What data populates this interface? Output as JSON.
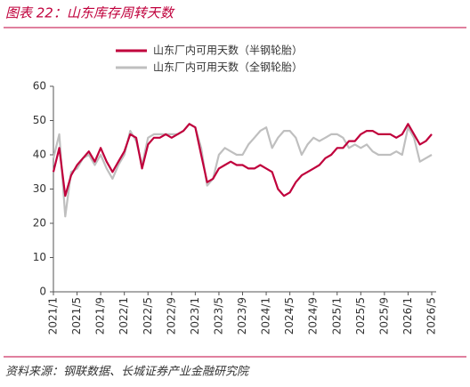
{
  "chart_data": {
    "type": "line",
    "title": "图表 22：山东库存周转天数",
    "source": "资料来源：钢联数据、长城证券产业金融研究院",
    "categories": [
      "2021/1",
      null,
      null,
      null,
      "2021/5",
      null,
      null,
      null,
      "2021/9",
      null,
      null,
      null,
      "2022/1",
      null,
      null,
      null,
      "2022/5",
      null,
      null,
      null,
      "2022/9",
      null,
      null,
      null,
      "2023/1",
      null,
      null,
      null,
      "2023/5",
      null,
      null,
      null,
      "2023/9",
      null,
      null,
      null,
      "2024/1",
      null,
      null,
      null,
      "2024/5",
      null,
      null,
      null,
      "2024/9",
      null,
      null,
      null,
      "2025/1",
      null,
      null,
      null,
      "2025/5",
      null,
      null,
      null,
      "2025/9",
      null,
      null,
      null,
      "2026/1",
      null,
      null,
      null,
      "2026/5"
    ],
    "series": [
      {
        "name": "山东厂内可用天数（半钢轮胎）",
        "color": "#c0003c",
        "values": [
          35,
          42,
          28,
          34,
          37,
          39,
          41,
          38,
          42,
          38,
          35,
          38,
          41,
          46,
          45,
          36,
          43,
          45,
          45,
          46,
          45,
          46,
          47,
          49,
          48,
          40,
          32,
          33,
          36,
          37,
          38,
          37,
          37,
          36,
          36,
          37,
          36,
          35,
          30,
          28,
          29,
          32,
          34,
          35,
          36,
          37,
          39,
          40,
          42,
          42,
          44,
          44,
          46,
          47,
          47,
          46,
          46,
          46,
          45,
          46,
          49,
          46,
          43,
          44,
          46
        ]
      },
      {
        "name": "山东厂内可用天数（全钢轮胎）",
        "color": "#bfbfbf",
        "values": [
          39,
          46,
          22,
          35,
          36,
          39,
          40,
          37,
          40,
          36,
          33,
          37,
          40,
          47,
          44,
          37,
          45,
          46,
          46,
          46,
          46,
          46,
          47,
          49,
          48,
          42,
          31,
          33,
          40,
          42,
          41,
          40,
          40,
          43,
          45,
          47,
          48,
          42,
          45,
          47,
          47,
          45,
          40,
          43,
          45,
          44,
          45,
          46,
          46,
          45,
          42,
          43,
          42,
          43,
          41,
          40,
          40,
          40,
          41,
          40,
          48,
          45,
          38,
          39,
          40
        ]
      }
    ],
    "ylim": [
      0,
      60
    ],
    "yticks": [
      0,
      10,
      20,
      30,
      40,
      50,
      60
    ]
  }
}
